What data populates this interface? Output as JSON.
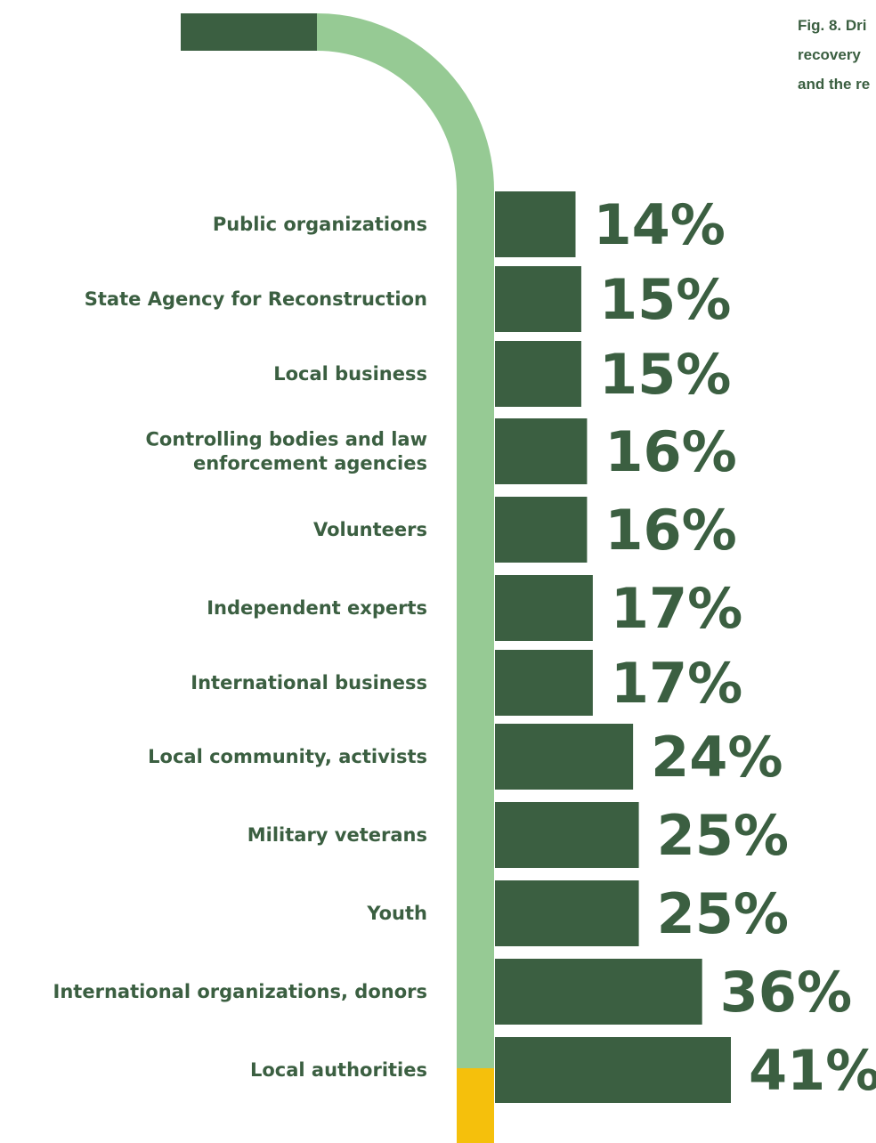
{
  "caption": {
    "line1": "Fig. 8. Dri",
    "line2": "recovery",
    "line3": "and the re"
  },
  "colors": {
    "bar": "#3b5f41",
    "track": "#96ca94",
    "accent": "#f5c00c",
    "text": "#3b5f41"
  },
  "chart_data": {
    "type": "bar",
    "orientation": "horizontal",
    "title": "",
    "xlabel": "",
    "ylabel": "",
    "xlim": [
      0,
      41
    ],
    "grid": false,
    "unit": "%",
    "categories": [
      [
        "Public organizations"
      ],
      [
        "State Agency for Reconstruction"
      ],
      [
        "Local business"
      ],
      [
        "Controlling bodies and law",
        "enforcement agencies"
      ],
      [
        "Volunteers"
      ],
      [
        "Independent experts"
      ],
      [
        "International business"
      ],
      [
        "Local community, activists"
      ],
      [
        "Military veterans"
      ],
      [
        "Youth"
      ],
      [
        "International organizations, donors"
      ],
      [
        "Local authorities"
      ]
    ],
    "values": [
      14,
      15,
      15,
      16,
      16,
      17,
      17,
      24,
      25,
      25,
      36,
      41
    ],
    "value_labels": [
      "14%",
      "15%",
      "15%",
      "16%",
      "16%",
      "17%",
      "17%",
      "24%",
      "25%",
      "25%",
      "36%",
      "41%"
    ]
  }
}
